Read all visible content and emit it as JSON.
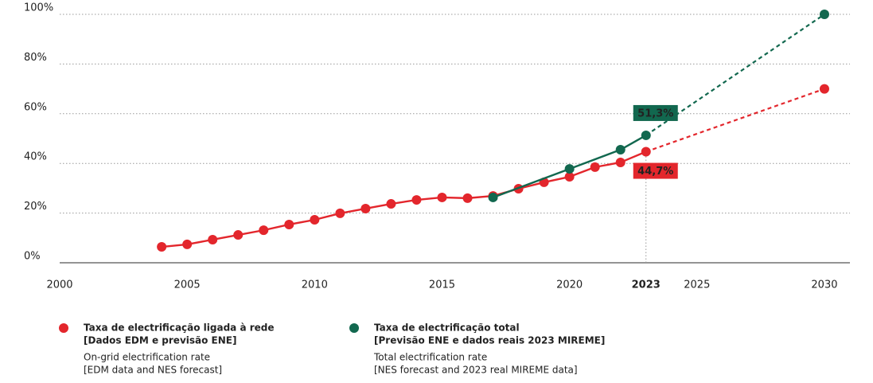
{
  "chart_data": {
    "type": "line",
    "xlim": [
      2000,
      2031
    ],
    "xticks": [
      2000,
      2005,
      2010,
      2015,
      2020,
      2023,
      2025,
      2030
    ],
    "highlight_x": 2023,
    "ylim": [
      0,
      100
    ],
    "yticks": [
      {
        "value": 0,
        "label": "0%"
      },
      {
        "value": 20,
        "label": "20%"
      },
      {
        "value": 40,
        "label": "40%"
      },
      {
        "value": 60,
        "label": "60%"
      },
      {
        "value": 80,
        "label": "80%"
      },
      {
        "value": 100,
        "label": "100%"
      }
    ],
    "grid": true,
    "dash_after": 2023,
    "series": [
      {
        "name": "Taxa de electrificação ligada à rede",
        "name_detail": "[Dados EDM e previsão ENE]",
        "description": [
          "On-grid electrification rate",
          "[EDM data and NES forecast]"
        ],
        "color": "#e3262c",
        "label_position": "below",
        "x": [
          2004,
          2005,
          2006,
          2007,
          2008,
          2009,
          2010,
          2011,
          2012,
          2013,
          2014,
          2015,
          2016,
          2017,
          2018,
          2019,
          2020,
          2021,
          2022,
          2023,
          2030
        ],
        "values": [
          6.4,
          7.4,
          9.3,
          11.2,
          13.1,
          15.4,
          17.3,
          19.9,
          21.8,
          23.7,
          25.3,
          26.3,
          26,
          26.9,
          29.8,
          32.4,
          34.6,
          38.5,
          40.4,
          44.7,
          70
        ],
        "value_labels": [
          null,
          null,
          null,
          null,
          null,
          null,
          null,
          null,
          null,
          null,
          null,
          null,
          null,
          null,
          null,
          null,
          null,
          null,
          null,
          "44,7%",
          null
        ]
      },
      {
        "name": "Taxa de electrificação total",
        "name_detail": "[Previsão ENE e dados reais 2023 MIREME]",
        "description": [
          "Total electrification rate",
          "[NES forecast and 2023 real MIREME data]"
        ],
        "color": "#12684f",
        "label_position": "above",
        "x": [
          2017,
          2020,
          2022,
          2023,
          2030
        ],
        "values": [
          26.3,
          37.8,
          45.5,
          51.3,
          100
        ],
        "value_labels": [
          null,
          null,
          null,
          "51,3%",
          null
        ]
      }
    ]
  }
}
